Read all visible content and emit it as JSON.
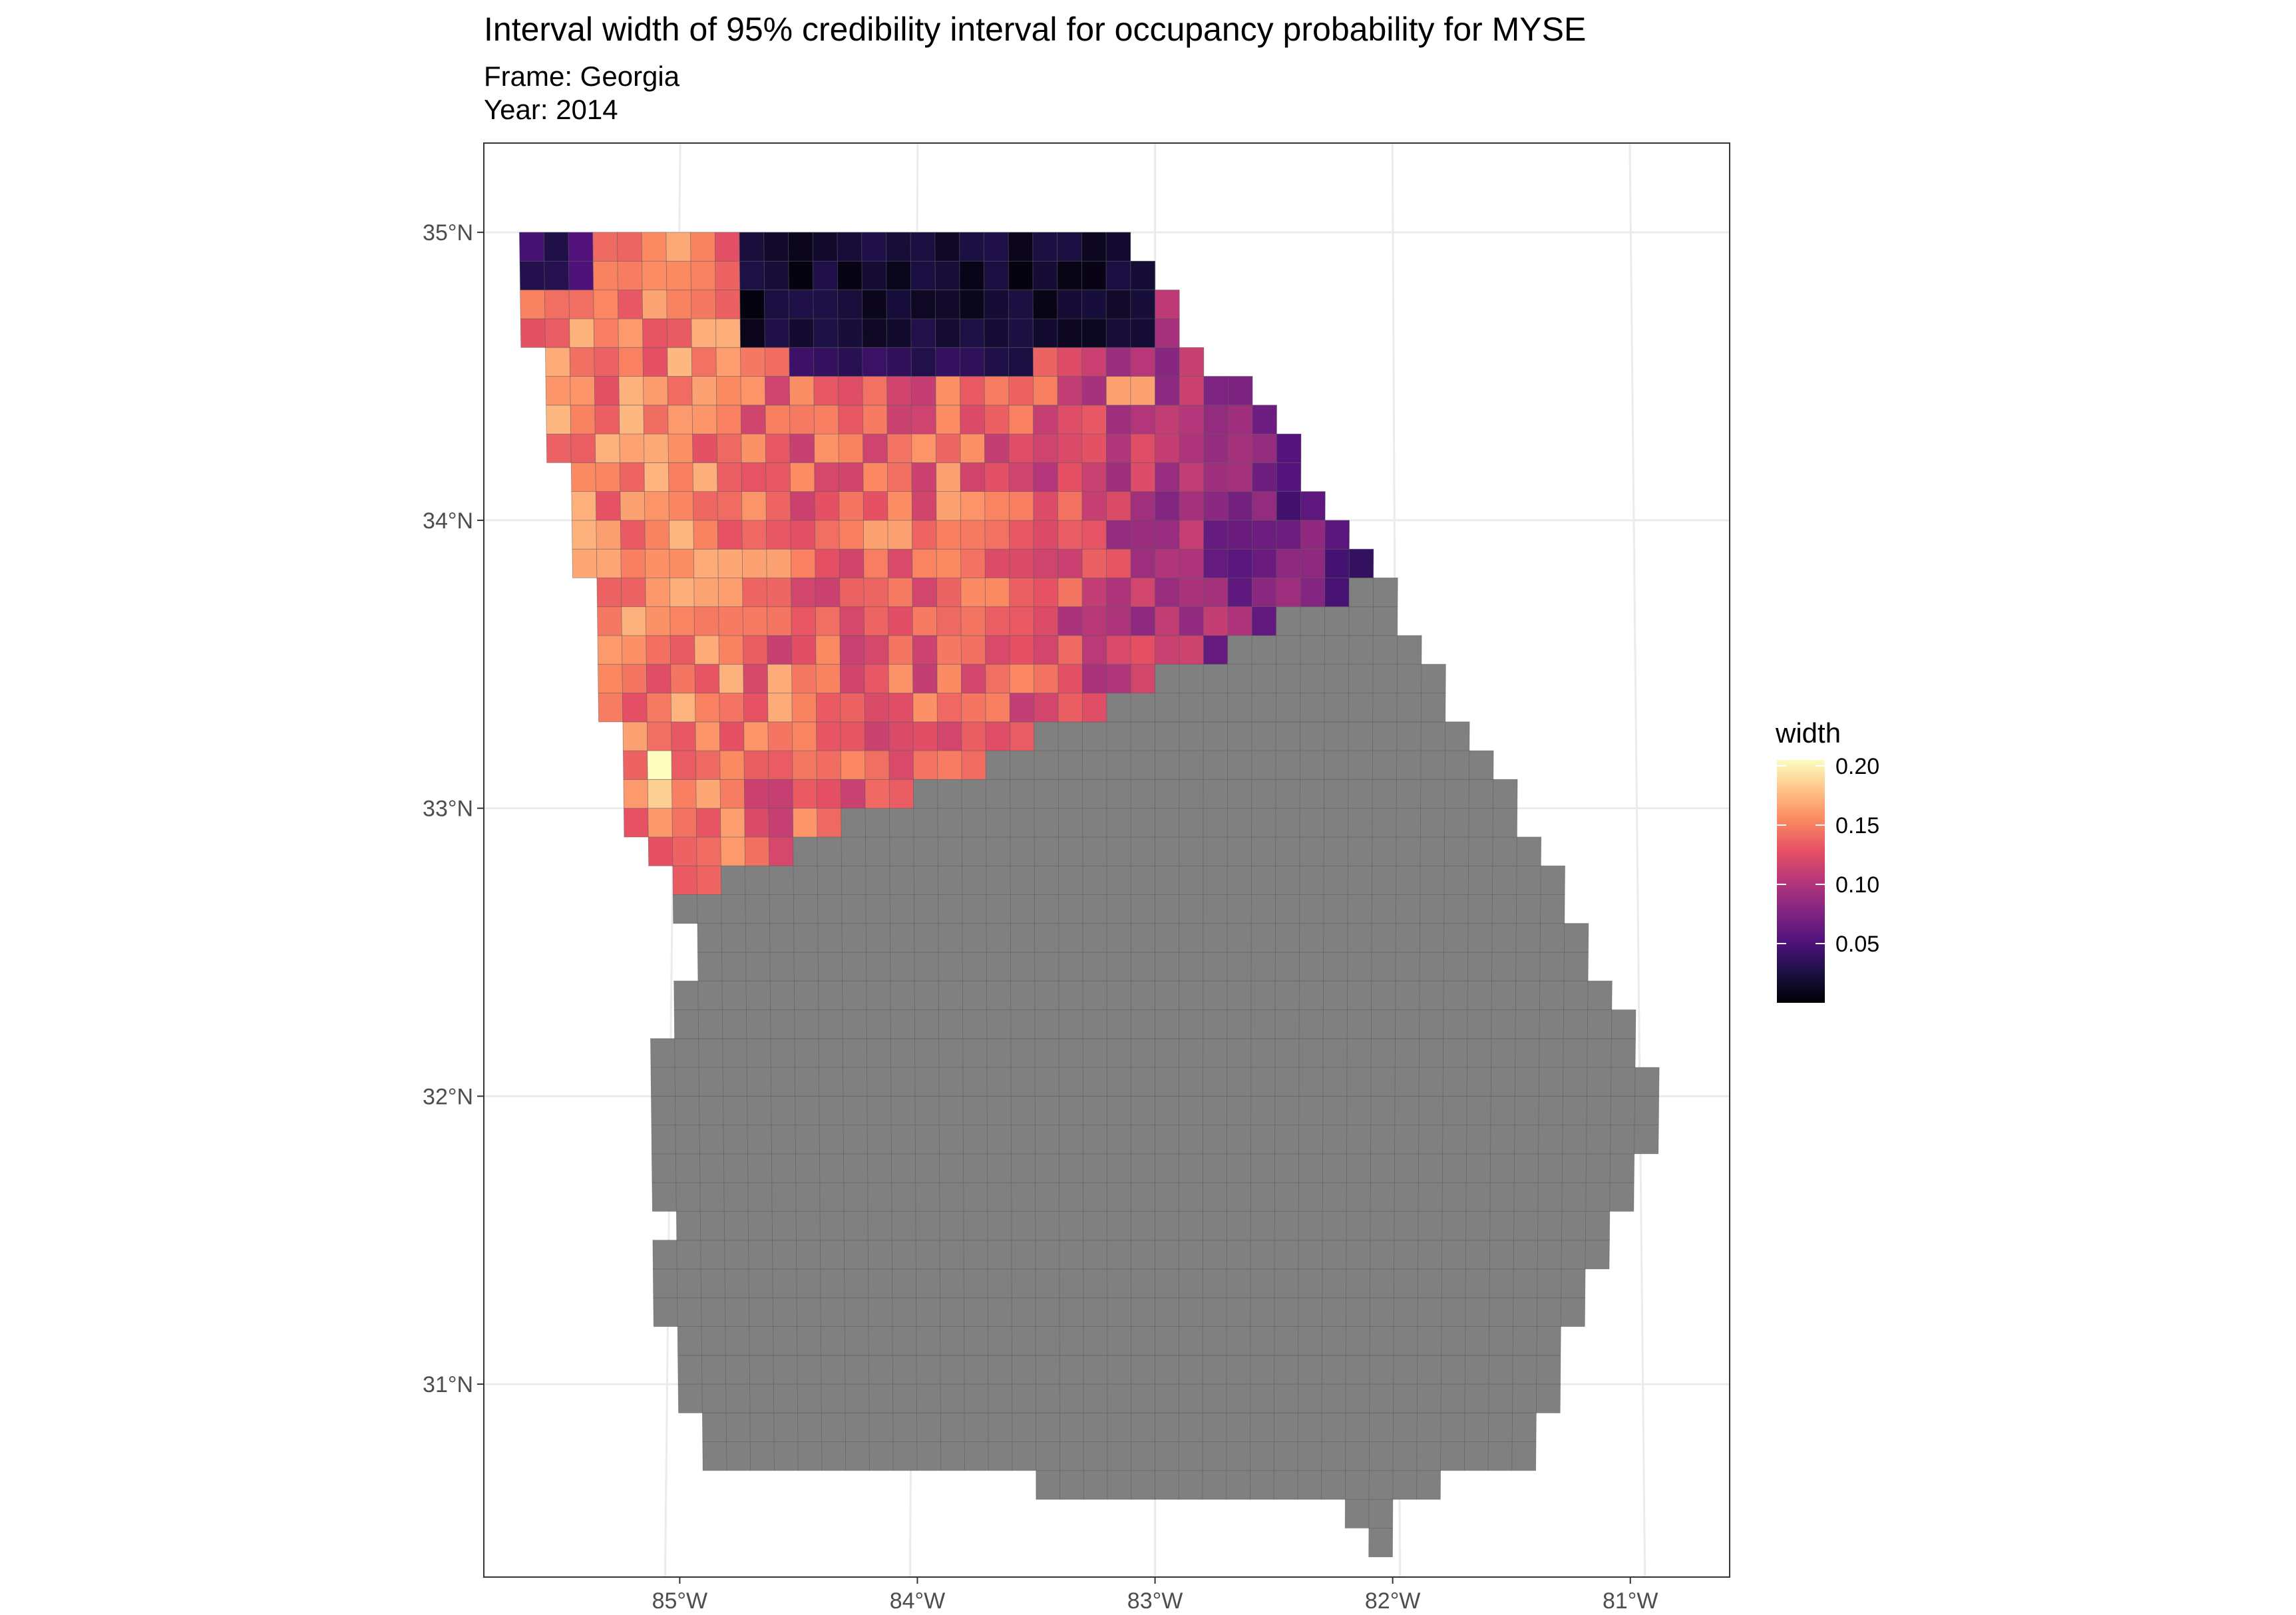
{
  "title": "Interval width of 95% credibility interval for occupancy probability for MYSE",
  "subtitle_frame": "Frame: Georgia",
  "subtitle_year": "Year: 2014",
  "chart_data": {
    "type": "heatmap",
    "legend": {
      "title": "width",
      "breaks": [
        0.05,
        0.1,
        0.15,
        0.2
      ],
      "labels": [
        "0.05",
        "0.10",
        "0.15",
        "0.20"
      ],
      "range": [
        0.0,
        0.205
      ],
      "palette": [
        "#000004",
        "#1c1044",
        "#4f127b",
        "#812581",
        "#b5367a",
        "#e55064",
        "#fb8761",
        "#fec287",
        "#fcfdbf"
      ]
    },
    "x_axis": {
      "ticks": [
        -85,
        -84,
        -83,
        -82,
        -81
      ],
      "labels": [
        "85°W",
        "84°W",
        "83°W",
        "82°W",
        "81°W"
      ],
      "range": [
        -85.78,
        -80.62
      ]
    },
    "y_axis": {
      "ticks": [
        31,
        32,
        33,
        34,
        35
      ],
      "labels": [
        "31°N",
        "32°N",
        "33°N",
        "34°N",
        "35°N"
      ],
      "range": [
        30.33,
        35.31
      ]
    },
    "grid": true,
    "missing_color": "#808080",
    "grid_cell_deg": 0.1
  }
}
